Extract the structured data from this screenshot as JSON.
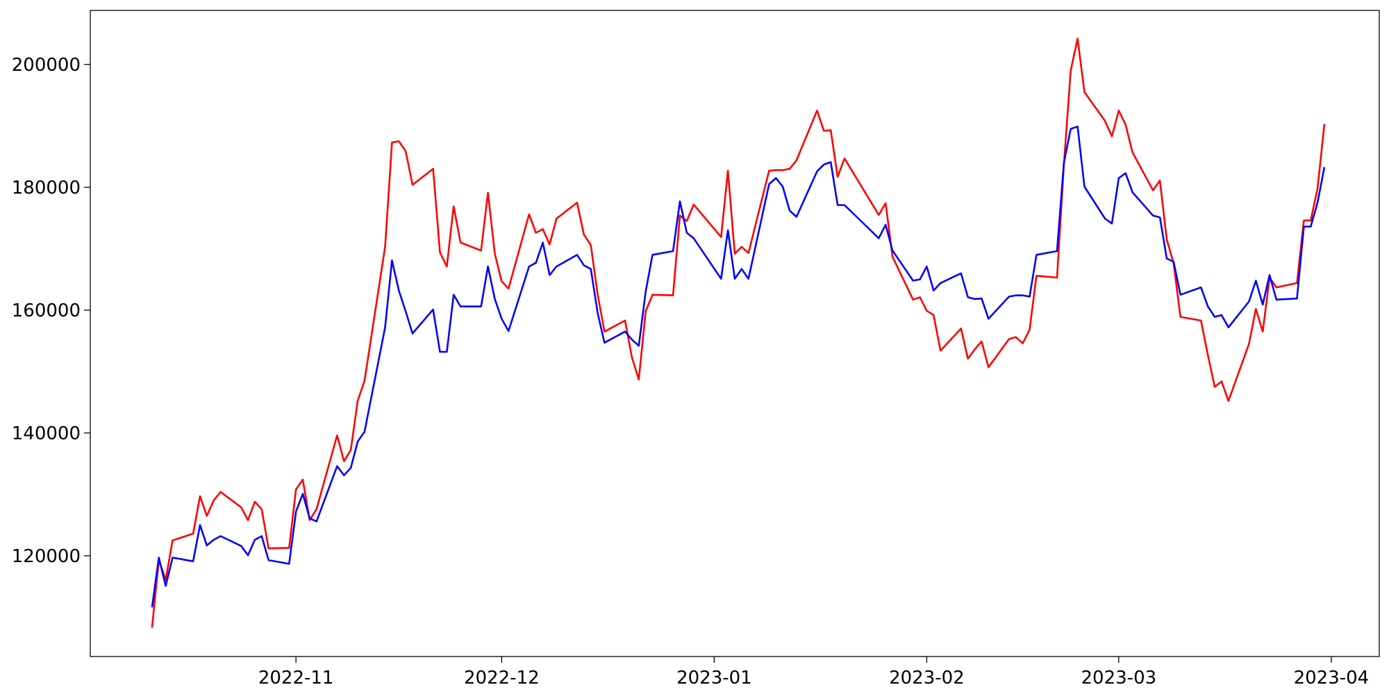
{
  "chart_data": {
    "type": "line",
    "x": [
      "2022-10-11",
      "2022-10-12",
      "2022-10-13",
      "2022-10-14",
      "2022-10-17",
      "2022-10-18",
      "2022-10-19",
      "2022-10-20",
      "2022-10-21",
      "2022-10-24",
      "2022-10-25",
      "2022-10-26",
      "2022-10-27",
      "2022-10-28",
      "2022-10-31",
      "2022-11-01",
      "2022-11-02",
      "2022-11-03",
      "2022-11-04",
      "2022-11-07",
      "2022-11-08",
      "2022-11-09",
      "2022-11-10",
      "2022-11-11",
      "2022-11-14",
      "2022-11-15",
      "2022-11-16",
      "2022-11-17",
      "2022-11-18",
      "2022-11-21",
      "2022-11-22",
      "2022-11-23",
      "2022-11-24",
      "2022-11-25",
      "2022-11-28",
      "2022-11-29",
      "2022-11-30",
      "2022-12-01",
      "2022-12-02",
      "2022-12-05",
      "2022-12-06",
      "2022-12-07",
      "2022-12-08",
      "2022-12-09",
      "2022-12-12",
      "2022-12-13",
      "2022-12-14",
      "2022-12-15",
      "2022-12-16",
      "2022-12-19",
      "2022-12-20",
      "2022-12-21",
      "2022-12-22",
      "2022-12-23",
      "2022-12-26",
      "2022-12-27",
      "2022-12-28",
      "2022-12-29",
      "2023-01-02",
      "2023-01-03",
      "2023-01-04",
      "2023-01-05",
      "2023-01-06",
      "2023-01-09",
      "2023-01-10",
      "2023-01-11",
      "2023-01-12",
      "2023-01-13",
      "2023-01-16",
      "2023-01-17",
      "2023-01-18",
      "2023-01-19",
      "2023-01-20",
      "2023-01-25",
      "2023-01-26",
      "2023-01-27",
      "2023-01-30",
      "2023-01-31",
      "2023-02-01",
      "2023-02-02",
      "2023-02-03",
      "2023-02-06",
      "2023-02-07",
      "2023-02-08",
      "2023-02-09",
      "2023-02-10",
      "2023-02-13",
      "2023-02-14",
      "2023-02-15",
      "2023-02-16",
      "2023-02-17",
      "2023-02-20",
      "2023-02-21",
      "2023-02-22",
      "2023-02-23",
      "2023-02-24",
      "2023-02-27",
      "2023-02-28",
      "2023-03-01",
      "2023-03-02",
      "2023-03-03",
      "2023-03-06",
      "2023-03-07",
      "2023-03-08",
      "2023-03-09",
      "2023-03-10",
      "2023-03-13",
      "2023-03-14",
      "2023-03-15",
      "2023-03-16",
      "2023-03-17",
      "2023-03-20",
      "2023-03-21",
      "2023-03-22",
      "2023-03-23",
      "2023-03-24",
      "2023-03-27",
      "2023-03-28",
      "2023-03-29",
      "2023-03-30",
      "2023-03-31"
    ],
    "series": [
      {
        "color": "#ff0000",
        "values": [
          108300,
          119300,
          116100,
          122500,
          123600,
          129700,
          126500,
          129000,
          130400,
          127900,
          125800,
          128800,
          127600,
          121200,
          121300,
          130800,
          132400,
          125800,
          127600,
          139600,
          135400,
          137200,
          145200,
          148500,
          170300,
          187300,
          187500,
          185900,
          180400,
          183000,
          169400,
          167100,
          176900,
          171000,
          169700,
          179100,
          169200,
          164700,
          163500,
          175600,
          172600,
          173200,
          170700,
          174900,
          177500,
          172300,
          170600,
          162500,
          156500,
          158300,
          152300,
          148700,
          159800,
          162500,
          162400,
          175400,
          174500,
          177200,
          171900,
          182700,
          169200,
          170300,
          169300,
          182700,
          182800,
          182800,
          183000,
          184400,
          192500,
          189200,
          189300,
          181700,
          184700,
          175500,
          177400,
          168700,
          161700,
          162100,
          159900,
          159200,
          153400,
          157000,
          152100,
          153600,
          154900,
          150700,
          155300,
          155600,
          154600,
          156800,
          165600,
          165300,
          183700,
          199000,
          204200,
          195500,
          190800,
          188300,
          192500,
          190200,
          185700,
          179500,
          181100,
          171500,
          167700,
          158900,
          158300,
          152700,
          147500,
          148400,
          145200,
          154500,
          160200,
          156500,
          165300,
          163700,
          164400,
          174600,
          174600,
          179800,
          190300
        ]
      },
      {
        "color": "#0000ff",
        "values": [
          111600,
          119700,
          115100,
          119700,
          119100,
          125000,
          121700,
          122600,
          123200,
          121600,
          120100,
          122600,
          123200,
          119300,
          118700,
          127200,
          130100,
          126100,
          125600,
          134600,
          133100,
          134300,
          138600,
          140200,
          157200,
          168100,
          163200,
          159800,
          156200,
          160100,
          153200,
          153200,
          162500,
          160600,
          160600,
          167100,
          161800,
          158600,
          156600,
          167100,
          167700,
          171000,
          165700,
          167100,
          169000,
          167300,
          166700,
          159500,
          154700,
          156500,
          155200,
          154200,
          163000,
          169000,
          169600,
          177700,
          172600,
          171700,
          165100,
          173000,
          165100,
          166700,
          165100,
          180500,
          181500,
          180100,
          176200,
          175200,
          182600,
          183700,
          184100,
          177100,
          177100,
          171700,
          173900,
          169700,
          164800,
          165000,
          167100,
          163200,
          164400,
          166000,
          162100,
          161800,
          161900,
          158600,
          162200,
          162400,
          162400,
          162200,
          169000,
          169600,
          184000,
          189500,
          189900,
          180100,
          174900,
          174100,
          181500,
          182300,
          179200,
          175400,
          175100,
          168400,
          167900,
          162500,
          163700,
          160600,
          158900,
          159200,
          157200,
          161400,
          164800,
          160900,
          165700,
          161700,
          161900,
          173600,
          173600,
          177500,
          183300
        ]
      }
    ],
    "xlim": [
      "2022-10-02",
      "2023-04-08"
    ],
    "xticks": [
      {
        "value": "2022-11-01",
        "label": "2022-11"
      },
      {
        "value": "2022-12-01",
        "label": "2022-12"
      },
      {
        "value": "2023-01-01",
        "label": "2023-01"
      },
      {
        "value": "2023-02-01",
        "label": "2023-02"
      },
      {
        "value": "2023-03-01",
        "label": "2023-03"
      },
      {
        "value": "2023-04-01",
        "label": "2023-04"
      }
    ],
    "ylim": [
      103600,
      208800
    ],
    "yticks": [
      120000,
      140000,
      160000,
      180000,
      200000
    ],
    "grid": false
  }
}
